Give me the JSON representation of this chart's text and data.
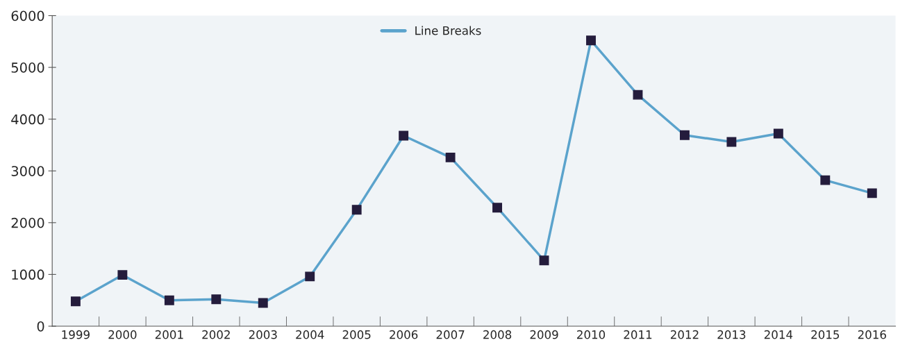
{
  "chart_data": {
    "type": "line",
    "categories": [
      "1999",
      "2000",
      "2001",
      "2002",
      "2003",
      "2004",
      "2005",
      "2006",
      "2007",
      "2008",
      "2009",
      "2010",
      "2011",
      "2012",
      "2013",
      "2014",
      "2015",
      "2016"
    ],
    "series": [
      {
        "name": "Line Breaks",
        "color": "#5ba3cc",
        "values": [
          480,
          990,
          500,
          520,
          450,
          960,
          2250,
          3680,
          3260,
          2290,
          1270,
          5520,
          4470,
          3690,
          3560,
          3720,
          2820,
          2570
        ]
      }
    ],
    "ylim": [
      0,
      6000
    ],
    "yticks": [
      0,
      1000,
      2000,
      3000,
      4000,
      5000,
      6000
    ],
    "marker": "square",
    "line_style": "solid",
    "grid": false,
    "legend": "top"
  }
}
